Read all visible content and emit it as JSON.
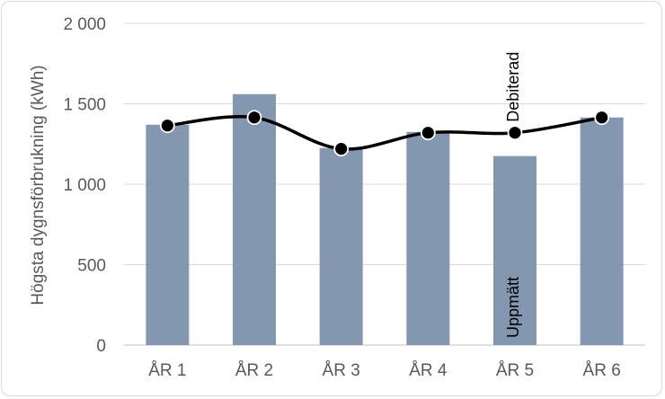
{
  "chart_data": {
    "type": "bar",
    "categories": [
      "ÅR 1",
      "ÅR 2",
      "ÅR 3",
      "ÅR 4",
      "ÅR 5",
      "ÅR 6"
    ],
    "series": [
      {
        "name": "Uppmätt",
        "type": "bar",
        "color": "#8497b0",
        "values": [
          1370,
          1560,
          1225,
          1325,
          1175,
          1415
        ]
      },
      {
        "name": "Debiterad",
        "type": "line",
        "color": "#000000",
        "values": [
          1365,
          1415,
          1220,
          1320,
          1320,
          1415
        ]
      }
    ],
    "ylabel": "Högsta dygnsförbrukning (kWh)",
    "ylim": [
      0,
      2000
    ],
    "yticks": [
      0,
      500,
      1000,
      1500,
      2000
    ],
    "ytick_labels": [
      "0",
      "500",
      "1 000",
      "1 500",
      "2 000"
    ],
    "grid": true,
    "annotations": [
      {
        "text": "Debiterad",
        "category": "ÅR 5",
        "series": "Debiterad"
      },
      {
        "text": "Uppmätt",
        "category": "ÅR 5",
        "series": "Uppmätt"
      }
    ]
  }
}
